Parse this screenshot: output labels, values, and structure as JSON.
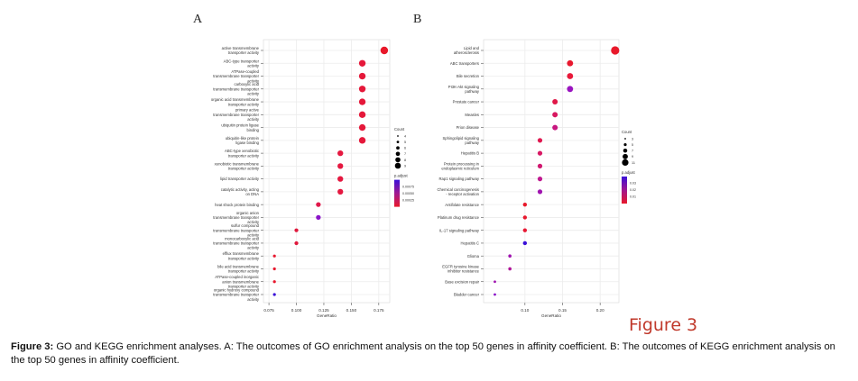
{
  "panel_a_label": "A",
  "panel_b_label": "B",
  "figure_tag": "Figure 3",
  "caption": {
    "lead": "Figure 3:",
    "text": " GO and KEGG enrichment analyses. A: The outcomes of GO enrichment analysis on the top 50 genes in affinity coefficient. B: The outcomes of KEGG enrichment analysis on the top 50 genes in affinity coefficient."
  },
  "chart_data": [
    {
      "type": "scatter",
      "panel": "A",
      "xlabel": "GeneRatio",
      "xlim": [
        0.07,
        0.185
      ],
      "xticks": [
        0.075,
        0.1,
        0.125,
        0.15,
        0.175
      ],
      "xtick_labels": [
        "0.075",
        "0.100",
        "0.125",
        "0.150",
        "0.175"
      ],
      "size_legend": {
        "title": "Count",
        "labels": [
          "4",
          "5",
          "6",
          "7",
          "8",
          "9"
        ]
      },
      "color_legend": {
        "title": "p.adjust",
        "labels": [
          "0.00075",
          "0.00050",
          "0.00025"
        ],
        "low_color": "#e8182a",
        "high_color": "#3a10d8"
      },
      "grid": true,
      "categories": [
        "active transmembrane transporter activity",
        "ABC-type transporter activity",
        "ATPase-coupled transmembrane transporter activity",
        "carboxylic acid transmembrane transporter activity",
        "organic acid transmembrane transporter activity",
        "primary active transmembrane transporter activity",
        "ubiquitin protein ligase binding",
        "ubiquitin-like protein ligase binding",
        "ABC-type xenobiotic transporter activity",
        "xenobiotic transmembrane transporter activity",
        "lipid transporter activity",
        "catalytic activity, acting on DNA",
        "heat shock protein binding",
        "organic anion transmembrane transporter activity",
        "sulfur compound transmembrane transporter activity",
        "monocarboxylic acid transmembrane transporter activity",
        "efflux transmembrane transporter activity",
        "bile acid transmembrane transporter activity",
        "ATPase-coupled inorganic anion transmembrane transporter activity",
        "organic hydroxy compound transmembrane transporter activity"
      ],
      "gene_ratio": [
        0.18,
        0.16,
        0.16,
        0.16,
        0.16,
        0.16,
        0.16,
        0.16,
        0.14,
        0.14,
        0.14,
        0.14,
        0.12,
        0.12,
        0.1,
        0.1,
        0.08,
        0.08,
        0.08,
        0.08
      ],
      "count": [
        9,
        8,
        8,
        8,
        8,
        8,
        8,
        8,
        7,
        7,
        7,
        7,
        6,
        6,
        5,
        5,
        4,
        4,
        4,
        4
      ],
      "p_adjust_color": [
        "#e8182a",
        "#e5183a",
        "#e5183a",
        "#e5183a",
        "#e5183a",
        "#e5183a",
        "#e5183a",
        "#e5183a",
        "#e51840",
        "#e51840",
        "#e51840",
        "#e51840",
        "#e0184a",
        "#8a14c8",
        "#e0183c",
        "#e0183c",
        "#e8182e",
        "#e8182e",
        "#e8182e",
        "#3a10d8"
      ]
    },
    {
      "type": "scatter",
      "panel": "B",
      "xlabel": "GeneRatio",
      "xlim": [
        0.045,
        0.225
      ],
      "xticks": [
        0.1,
        0.15,
        0.2
      ],
      "xtick_labels": [
        "0.10",
        "0.15",
        "0.20"
      ],
      "size_legend": {
        "title": "Count",
        "labels": [
          "3",
          "5",
          "7",
          "9",
          "11"
        ]
      },
      "color_legend": {
        "title": "p.adjust",
        "labels": [
          "0.03",
          "0.02",
          "0.01"
        ],
        "low_color": "#e8182a",
        "high_color": "#3a10d8"
      },
      "grid": true,
      "categories": [
        "Lipid and atherosclerosis",
        "ABC transporters",
        "Bile secretion",
        "PI3K-Akt signaling pathway",
        "Prostate cancer",
        "Measles",
        "Prion disease",
        "Sphingolipid signaling pathway",
        "Hepatitis B",
        "Protein processing in endoplasmic reticulum",
        "Rap1 signaling pathway",
        "Chemical carcinogenesis - receptor activation",
        "Antifolate resistance",
        "Platinum drug resistance",
        "IL-17 signaling pathway",
        "Hepatitis C",
        "Glioma",
        "EGFR tyrosine kinase inhibitor resistance",
        "Base excision repair",
        "Bladder cancer"
      ],
      "gene_ratio": [
        0.22,
        0.16,
        0.16,
        0.16,
        0.14,
        0.14,
        0.14,
        0.12,
        0.12,
        0.12,
        0.12,
        0.12,
        0.1,
        0.1,
        0.1,
        0.1,
        0.08,
        0.08,
        0.06,
        0.06
      ],
      "count": [
        11,
        8,
        8,
        8,
        7,
        7,
        7,
        6,
        6,
        6,
        6,
        6,
        5,
        5,
        5,
        5,
        4,
        4,
        3,
        3
      ],
      "p_adjust_color": [
        "#e8182a",
        "#e8182e",
        "#e8183a",
        "#9a14c0",
        "#e01848",
        "#d81860",
        "#c81880",
        "#e01850",
        "#d81864",
        "#d01870",
        "#c01890",
        "#a014b0",
        "#e8182a",
        "#e8182e",
        "#e81834",
        "#3a10d8",
        "#a014b0",
        "#b01498",
        "#a014b0",
        "#8a14c8"
      ]
    }
  ]
}
